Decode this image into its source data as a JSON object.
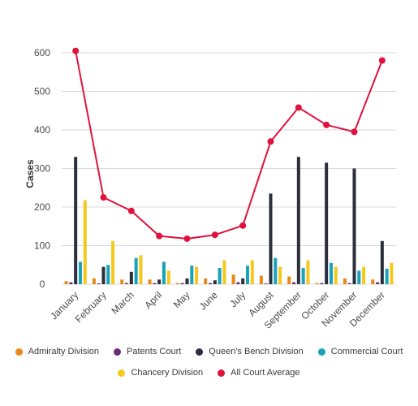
{
  "chart_data": {
    "type": "bar",
    "ylabel": "Cases",
    "xlabel": "",
    "ylim": [
      0,
      650
    ],
    "yticks": [
      0,
      100,
      200,
      300,
      400,
      500,
      600
    ],
    "grid": true,
    "legend_position": "bottom",
    "categories": [
      "January",
      "February",
      "March",
      "April",
      "May",
      "June",
      "July",
      "August",
      "September",
      "October",
      "November",
      "December"
    ],
    "series": [
      {
        "name": "Admiralty Division",
        "type": "bar",
        "color": "#e8891a",
        "values": [
          8,
          15,
          12,
          12,
          3,
          15,
          25,
          22,
          20,
          3,
          15,
          12
        ]
      },
      {
        "name": "Patents Court",
        "type": "bar",
        "color": "#6b2d7b",
        "values": [
          5,
          2,
          3,
          3,
          3,
          3,
          5,
          2,
          5,
          3,
          3,
          5
        ]
      },
      {
        "name": "Queen's Bench Division",
        "type": "bar",
        "color": "#2b2e3b",
        "values": [
          330,
          45,
          32,
          12,
          15,
          10,
          15,
          235,
          330,
          315,
          300,
          112
        ]
      },
      {
        "name": "Commercial Court",
        "type": "bar",
        "color": "#1aa3b8",
        "values": [
          58,
          50,
          68,
          58,
          48,
          42,
          48,
          68,
          42,
          55,
          35,
          40
        ]
      },
      {
        "name": "Chancery Division",
        "type": "bar",
        "color": "#f5c81c",
        "values": [
          218,
          112,
          75,
          35,
          45,
          62,
          62,
          45,
          62,
          45,
          45,
          55
        ]
      },
      {
        "name": "All Court Average",
        "type": "line",
        "color": "#e0123d",
        "values": [
          605,
          225,
          190,
          125,
          118,
          128,
          152,
          370,
          458,
          413,
          395,
          580
        ]
      }
    ]
  }
}
